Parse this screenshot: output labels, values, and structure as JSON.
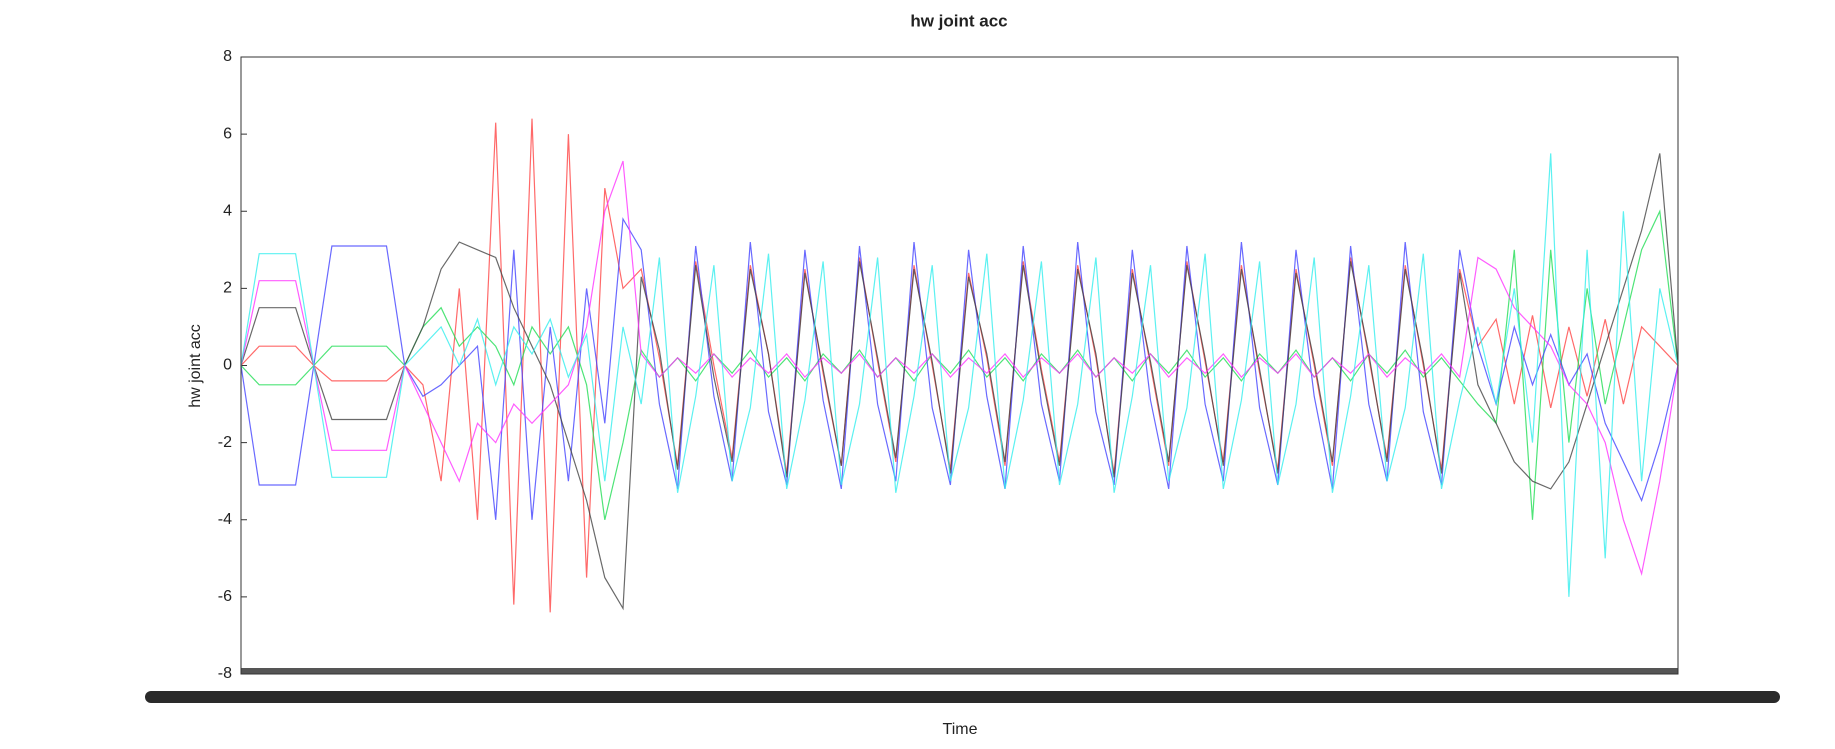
{
  "chart_data": {
    "type": "line",
    "title": "hw joint acc",
    "x_label": "Time",
    "y_label": "hw joint acc",
    "ylim": [
      -8,
      8
    ],
    "yticks": [
      -8,
      -6,
      -4,
      -2,
      0,
      2,
      4,
      6,
      8
    ],
    "grid": false,
    "series": [
      {
        "name": "red",
        "color": "#ff4444",
        "values": [
          0,
          0.5,
          0.5,
          0.5,
          0,
          -0.4,
          -0.4,
          -0.4,
          -0.4,
          0,
          -0.5,
          -3,
          2,
          -4,
          6.3,
          -6.2,
          6.4,
          -6.4,
          6,
          -5.5,
          4.6,
          2,
          2.5,
          0.2,
          -2.6,
          2.7,
          0,
          -2.4,
          2.6,
          0.3,
          -2.8,
          2.5,
          -0.2,
          -2.6,
          2.8,
          0.1,
          -2.5,
          2.6,
          0,
          -2.7,
          2.4,
          0.2,
          -2.6,
          2.7,
          -0.1,
          -2.5,
          2.6,
          0.2,
          -2.8,
          2.5,
          0,
          -2.6,
          2.7,
          0.1,
          -2.5,
          2.6,
          -0.2,
          -2.7,
          2.5,
          0,
          -2.6,
          2.8,
          0.2,
          -2.4,
          2.6,
          0,
          -2.7,
          2.5,
          0.5,
          1.2,
          -1,
          1.3,
          -1.1,
          1,
          -0.8,
          1.2,
          -1,
          1,
          0.5,
          0
        ]
      },
      {
        "name": "green",
        "color": "#22dd55",
        "values": [
          0,
          -0.5,
          -0.5,
          -0.5,
          0,
          0.5,
          0.5,
          0.5,
          0.5,
          0,
          1,
          1.5,
          0.5,
          1,
          0.5,
          -0.5,
          1,
          0.3,
          1,
          -0.5,
          -4,
          -2,
          0.4,
          -0.3,
          0.2,
          -0.4,
          0.3,
          -0.2,
          0.4,
          -0.3,
          0.2,
          -0.4,
          0.3,
          -0.2,
          0.4,
          -0.3,
          0.2,
          -0.4,
          0.3,
          -0.2,
          0.4,
          -0.3,
          0.2,
          -0.4,
          0.3,
          -0.2,
          0.4,
          -0.3,
          0.2,
          -0.4,
          0.3,
          -0.2,
          0.4,
          -0.3,
          0.2,
          -0.4,
          0.3,
          -0.2,
          0.4,
          -0.3,
          0.2,
          -0.4,
          0.3,
          -0.2,
          0.4,
          -0.3,
          0.2,
          -0.4,
          -1,
          -1.5,
          3,
          -4,
          3,
          -2,
          2,
          -1,
          1,
          3,
          4,
          0
        ]
      },
      {
        "name": "blue",
        "color": "#4444ff",
        "values": [
          0,
          -3.1,
          -3.1,
          -3.1,
          0,
          3.1,
          3.1,
          3.1,
          3.1,
          0,
          -0.8,
          -0.5,
          0,
          0.5,
          -4,
          3,
          -4,
          1,
          -3,
          2,
          -1.5,
          3.8,
          3,
          -1,
          -3.2,
          3.1,
          -0.8,
          -3,
          3.2,
          -1.2,
          -3.1,
          3,
          -0.9,
          -3.2,
          3.1,
          -1,
          -3,
          3.2,
          -1.1,
          -3.1,
          3,
          -0.8,
          -3.2,
          3.1,
          -1,
          -3,
          3.2,
          -1.2,
          -3.1,
          3,
          -0.9,
          -3.2,
          3.1,
          -1,
          -3,
          3.2,
          -1.1,
          -3.1,
          3,
          -0.8,
          -3.2,
          3.1,
          -1,
          -3,
          3.2,
          -1.2,
          -3.1,
          3,
          0.5,
          -1,
          1,
          -0.5,
          0.8,
          -0.5,
          0.3,
          -1.5,
          -2.5,
          -3.5,
          -2,
          0
        ]
      },
      {
        "name": "black",
        "color": "#444444",
        "values": [
          0,
          1.5,
          1.5,
          1.5,
          0,
          -1.4,
          -1.4,
          -1.4,
          -1.4,
          0,
          1,
          2.5,
          3.2,
          3,
          2.8,
          1.5,
          0.5,
          -0.5,
          -2,
          -3.5,
          -5.5,
          -6.3,
          2.3,
          0.4,
          -2.7,
          2.6,
          -0.3,
          -2.5,
          2.5,
          0.3,
          -2.9,
          2.4,
          -0.1,
          -2.6,
          2.7,
          0.2,
          -2.4,
          2.5,
          0.1,
          -2.8,
          2.3,
          0.3,
          -2.5,
          2.6,
          -0.2,
          -2.6,
          2.5,
          0.3,
          -2.9,
          2.4,
          0.1,
          -2.5,
          2.6,
          0.2,
          -2.6,
          2.5,
          -0.1,
          -2.8,
          2.4,
          0.1,
          -2.5,
          2.7,
          0.3,
          -2.5,
          2.5,
          0.1,
          -2.8,
          2.4,
          -0.5,
          -1.5,
          -2.5,
          -3,
          -3.2,
          -2.5,
          -1,
          0.5,
          2,
          3.5,
          5.5,
          0
        ]
      },
      {
        "name": "magenta",
        "color": "#ff33ff",
        "values": [
          0,
          2.2,
          2.2,
          2.2,
          0,
          -2.2,
          -2.2,
          -2.2,
          -2.2,
          0,
          -1,
          -2,
          -3,
          -1.5,
          -2,
          -1,
          -1.5,
          -1,
          -0.5,
          1,
          4,
          5.3,
          0.3,
          -0.3,
          0.2,
          -0.2,
          0.3,
          -0.3,
          0.2,
          -0.2,
          0.3,
          -0.3,
          0.2,
          -0.2,
          0.3,
          -0.3,
          0.2,
          -0.2,
          0.3,
          -0.3,
          0.2,
          -0.2,
          0.3,
          -0.3,
          0.2,
          -0.2,
          0.3,
          -0.3,
          0.2,
          -0.2,
          0.3,
          -0.3,
          0.2,
          -0.2,
          0.3,
          -0.3,
          0.2,
          -0.2,
          0.3,
          -0.3,
          0.2,
          -0.2,
          0.3,
          -0.3,
          0.2,
          -0.2,
          0.3,
          -0.3,
          2.8,
          2.5,
          1.5,
          1,
          0.5,
          -0.5,
          -1,
          -2,
          -4,
          -5.4,
          -3,
          0
        ]
      },
      {
        "name": "cyan",
        "color": "#33eeee",
        "values": [
          0,
          2.9,
          2.9,
          2.9,
          0,
          -2.9,
          -2.9,
          -2.9,
          -2.9,
          0,
          0.5,
          1,
          0,
          1.2,
          -0.5,
          1,
          0.3,
          1.2,
          -0.3,
          0.8,
          -3,
          1,
          -1,
          2.8,
          -3.3,
          -0.8,
          2.6,
          -3,
          -1.1,
          2.9,
          -3.2,
          -0.9,
          2.7,
          -3.1,
          -1,
          2.8,
          -3.3,
          -0.8,
          2.6,
          -3,
          -1.1,
          2.9,
          -3.2,
          -0.9,
          2.7,
          -3.1,
          -1,
          2.8,
          -3.3,
          -0.8,
          2.6,
          -3,
          -1.1,
          2.9,
          -3.2,
          -0.9,
          2.7,
          -3.1,
          -1,
          2.8,
          -3.3,
          -0.8,
          2.6,
          -3,
          -1.1,
          2.9,
          -3.2,
          -0.9,
          1,
          -1,
          2,
          -2,
          5.5,
          -6,
          3,
          -5,
          4,
          -3,
          2,
          0
        ]
      }
    ]
  }
}
